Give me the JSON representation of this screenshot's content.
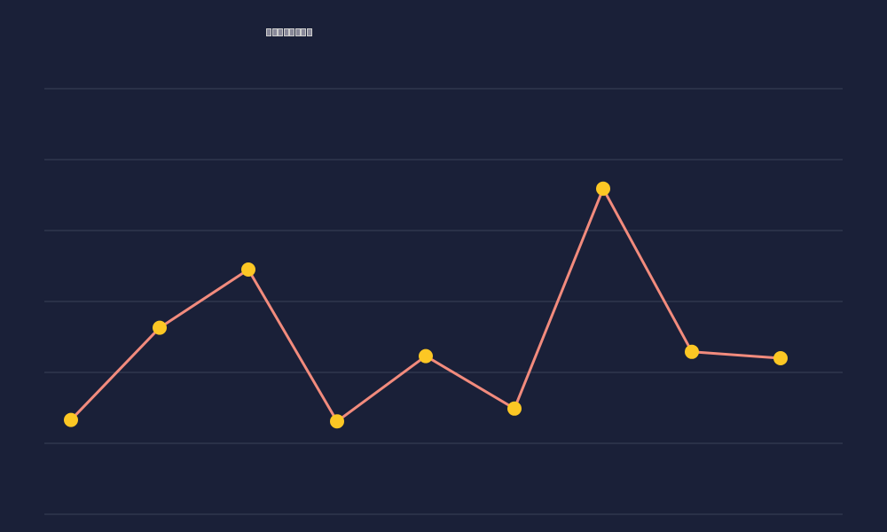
{
  "chart_data": {
    "type": "line",
    "title": "",
    "xlabel": "",
    "ylabel": "",
    "x": [
      1,
      2,
      3,
      4,
      5,
      6,
      7,
      8,
      9
    ],
    "series": [
      {
        "values": [
          1.33,
          2.63,
          3.45,
          1.31,
          2.23,
          1.49,
          4.59,
          2.29,
          2.2
        ]
      }
    ],
    "ylim": [
      0,
      6
    ],
    "grid": true,
    "legend": "none",
    "colors": {
      "background": "#1a2038",
      "line": "#f28b7d",
      "marker": "#fcc724",
      "grid": "#3a4258"
    }
  }
}
